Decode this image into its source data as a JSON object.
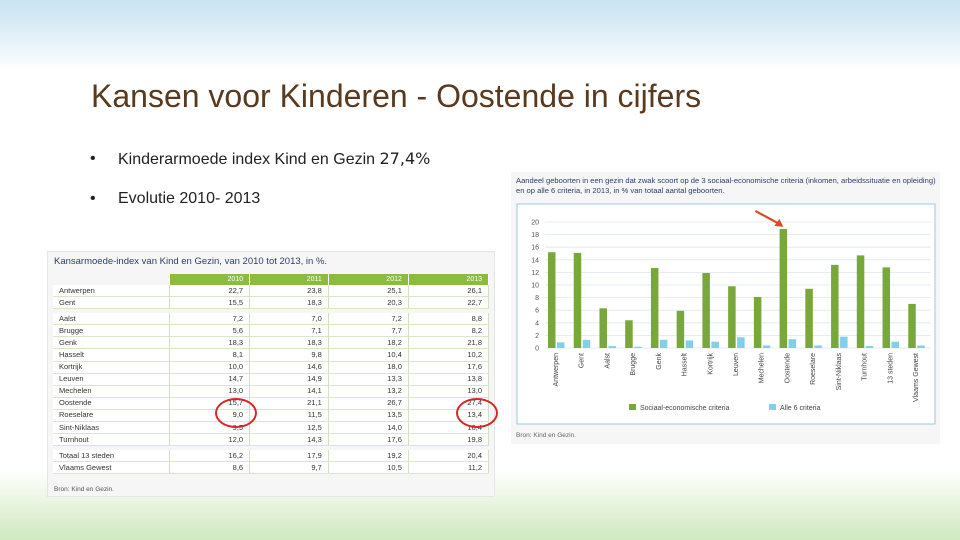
{
  "slide": {
    "title": "Kansen voor Kinderen - Oostende in cijfers",
    "bullets": [
      {
        "marker": "•",
        "text": "Kinderarmoede index Kind en Gezin ",
        "highlight": "27,4%"
      },
      {
        "marker": "•",
        "text": "Evolutie 2010- 2013",
        "highlight": ""
      }
    ]
  },
  "table": {
    "title": "Kansarmoede-index van Kind en Gezin, van 2010 tot 2013, in %.",
    "headers": [
      "",
      "2010",
      "2011",
      "2012",
      "2013"
    ],
    "groups": [
      [
        [
          "Antwerpen",
          "22,7",
          "23,8",
          "25,1",
          "26,1"
        ],
        [
          "Gent",
          "15,5",
          "18,3",
          "20,3",
          "22,7"
        ]
      ],
      [
        [
          "Aalst",
          "7,2",
          "7,0",
          "7,2",
          "8,8"
        ],
        [
          "Brugge",
          "5,6",
          "7,1",
          "7,7",
          "8,2"
        ],
        [
          "Genk",
          "18,3",
          "18,3",
          "18,2",
          "21,8"
        ],
        [
          "Hasselt",
          "8,1",
          "9,8",
          "10,4",
          "10,2"
        ],
        [
          "Kortrijk",
          "10,0",
          "14,6",
          "18,0",
          "17,6"
        ],
        [
          "Leuven",
          "14,7",
          "14,9",
          "13,3",
          "13,8"
        ],
        [
          "Mechelen",
          "13,0",
          "14,1",
          "13,2",
          "13,0"
        ],
        [
          "Oostende",
          "15,7",
          "21,1",
          "26,7",
          "27,4"
        ],
        [
          "Roeselare",
          "9,0",
          "11,5",
          "13,5",
          "13,4"
        ],
        [
          "Sint-Niklaas",
          "9,5",
          "12,5",
          "14,0",
          "16,4"
        ],
        [
          "Turnhout",
          "12,0",
          "14,3",
          "17,6",
          "19,8"
        ]
      ],
      [
        [
          "Totaal 13 steden",
          "16,2",
          "17,9",
          "19,2",
          "20,4"
        ],
        [
          "Vlaams Gewest",
          "8,6",
          "9,7",
          "10,5",
          "11,2"
        ]
      ]
    ],
    "source": "Bron: Kind en Gezin."
  },
  "chart_data": {
    "type": "bar",
    "title": "Aandeel geboorten in een gezin dat zwak scoort op de 3 sociaal-economische criteria (inkomen, arbeidssituatie en opleiding) en op alle 6 criteria, in 2013, in % van totaal aantal geboorten.",
    "categories": [
      "Antwerpen",
      "Gent",
      "Aalst",
      "Brugge",
      "Genk",
      "Hasselt",
      "Kortrijk",
      "Leuven",
      "Mechelen",
      "Oostende",
      "Roeselare",
      "Sint-Niklaas",
      "Turnhout",
      "13 steden",
      "Vlaams Gewest"
    ],
    "series": [
      {
        "name": "Sociaal-economische criteria",
        "color": "#78a83a",
        "values": [
          15.2,
          15.1,
          6.3,
          4.4,
          12.7,
          5.9,
          11.9,
          9.8,
          8.1,
          18.9,
          9.4,
          13.2,
          14.7,
          12.8,
          7.0
        ]
      },
      {
        "name": "Alle 6 criteria",
        "color": "#7fd0e8",
        "values": [
          0.9,
          1.3,
          0.3,
          0.2,
          1.3,
          1.2,
          1.0,
          1.7,
          0.4,
          1.4,
          0.4,
          1.8,
          0.3,
          1.0,
          0.4
        ]
      }
    ],
    "yticks": [
      0,
      2,
      4,
      6,
      8,
      10,
      12,
      14,
      16,
      18,
      20
    ],
    "ylim": [
      0,
      20
    ],
    "grid": true,
    "legend": "bottom",
    "source": "Bron: Kind en Gezin.",
    "annotation_color": "#e0482a"
  }
}
